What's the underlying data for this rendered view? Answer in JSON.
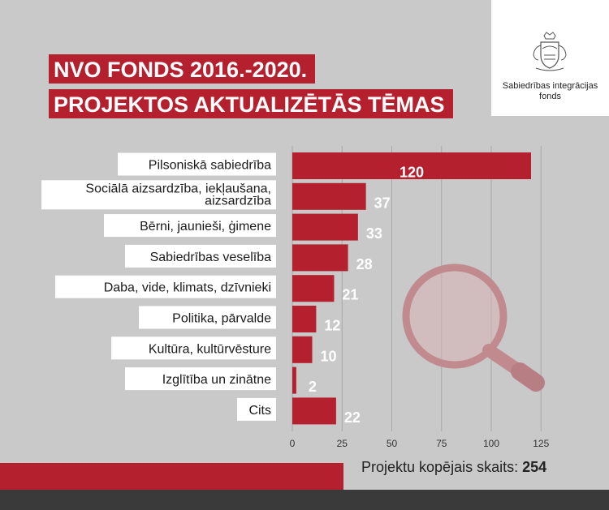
{
  "title": {
    "line1": "NVO FONDS 2016.-2020.",
    "line2": "PROJEKTOS AKTUALIZĒTĀS TĒMAS"
  },
  "logo": {
    "line1": "Sabiedrības integrācijas",
    "line2": "fonds",
    "icon": "coat-of-arms-icon"
  },
  "footer": {
    "total_label": "Projektu kopējais skaits:",
    "total_value": "254"
  },
  "colors": {
    "bar": "#b5202e",
    "background": "#c9c9c9",
    "label_box": "#ffffff"
  },
  "chart_data": {
    "type": "bar",
    "orientation": "horizontal",
    "categories": [
      [
        "Pilsoniskā sabiedrība"
      ],
      [
        "Sociālā aizsardzība, iekļaušana,",
        "aizsardzība"
      ],
      [
        "Bērni, jaunieši, ģimene"
      ],
      [
        "Sabiedrības veselība"
      ],
      [
        "Daba, vide, klimats, dzīvnieki"
      ],
      [
        "Politika, pārvalde"
      ],
      [
        "Kultūra, kultūrvēsture"
      ],
      [
        "Izglītība un zinātne"
      ],
      [
        "Cits"
      ]
    ],
    "values": [
      120,
      37,
      33,
      28,
      21,
      12,
      10,
      2,
      22
    ],
    "xlim": [
      0,
      125
    ],
    "xticks": [
      0,
      25,
      50,
      75,
      100,
      125
    ],
    "grid": true
  }
}
